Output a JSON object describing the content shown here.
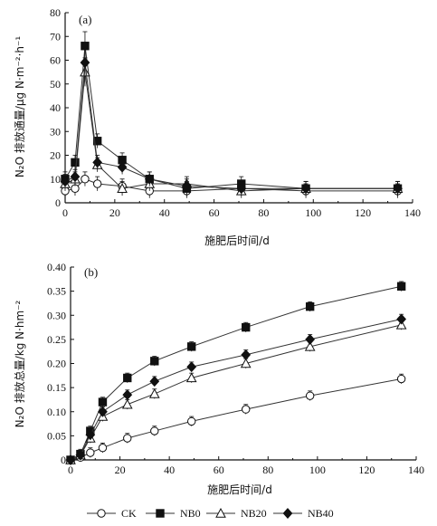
{
  "chart_data": [
    {
      "type": "line",
      "panel_label": "(a)",
      "title": "",
      "xlabel": "施肥后时间/d",
      "ylabel": "N₂O 排放通量/μg N·m⁻²·h⁻¹",
      "xlim": [
        0,
        140
      ],
      "ylim": [
        0,
        80
      ],
      "xticks": [
        0,
        20,
        40,
        60,
        80,
        100,
        120,
        140
      ],
      "yticks": [
        0,
        10,
        20,
        30,
        40,
        50,
        60,
        70,
        80
      ],
      "x": [
        0,
        4,
        8,
        13,
        23,
        34,
        49,
        71,
        97,
        134
      ],
      "series": [
        {
          "name": "CK",
          "marker": "circle-open",
          "values": [
            5,
            6,
            10,
            8,
            7,
            5,
            5,
            6,
            5,
            5
          ]
        },
        {
          "name": "NB0",
          "marker": "square-filled",
          "values": [
            10,
            17,
            66,
            26,
            18,
            10,
            6,
            8,
            6,
            6
          ]
        },
        {
          "name": "NB20",
          "marker": "triangle-open",
          "values": [
            8,
            10,
            55,
            16,
            6,
            8,
            8,
            5,
            6,
            6
          ]
        },
        {
          "name": "NB40",
          "marker": "diamond-filled",
          "values": [
            9,
            11,
            59,
            17,
            15,
            10,
            7,
            6,
            6,
            6
          ]
        }
      ]
    },
    {
      "type": "line",
      "panel_label": "(b)",
      "title": "",
      "xlabel": "施肥后时间/d",
      "ylabel": "N₂O 排放总量/kg N·hm⁻²",
      "xlim": [
        0,
        140
      ],
      "ylim": [
        0,
        0.4
      ],
      "xticks": [
        0,
        20,
        40,
        60,
        80,
        100,
        120,
        140
      ],
      "yticks": [
        "0",
        "0.05",
        "0.10",
        "0.15",
        "0.20",
        "0.25",
        "0.30",
        "0.35",
        "0.40"
      ],
      "x": [
        0,
        4,
        8,
        13,
        23,
        34,
        49,
        71,
        97,
        134
      ],
      "series": [
        {
          "name": "CK",
          "marker": "circle-open",
          "values": [
            0,
            0.005,
            0.015,
            0.025,
            0.045,
            0.06,
            0.08,
            0.105,
            0.133,
            0.168
          ]
        },
        {
          "name": "NB0",
          "marker": "square-filled",
          "values": [
            0,
            0.012,
            0.06,
            0.12,
            0.17,
            0.205,
            0.235,
            0.275,
            0.318,
            0.36
          ]
        },
        {
          "name": "NB20",
          "marker": "triangle-open",
          "values": [
            0,
            0.01,
            0.045,
            0.09,
            0.115,
            0.137,
            0.17,
            0.2,
            0.235,
            0.28
          ]
        },
        {
          "name": "NB40",
          "marker": "diamond-filled",
          "values": [
            0,
            0.01,
            0.052,
            0.1,
            0.135,
            0.163,
            0.193,
            0.218,
            0.25,
            0.292
          ]
        }
      ]
    }
  ],
  "legend": {
    "placement": "bottom",
    "items": [
      {
        "label": "CK",
        "marker": "circle-open"
      },
      {
        "label": "NB0",
        "marker": "square-filled"
      },
      {
        "label": "NB20",
        "marker": "triangle-open"
      },
      {
        "label": "NB40",
        "marker": "diamond-filled"
      }
    ]
  }
}
